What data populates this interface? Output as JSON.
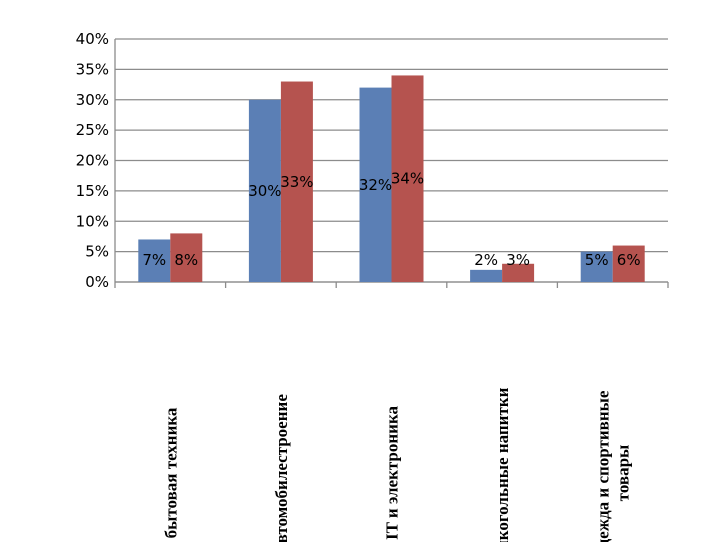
{
  "chart_data": {
    "type": "bar",
    "title": "",
    "xlabel": "",
    "ylabel": "",
    "categories": [
      [
        "бытовая техника"
      ],
      [
        "автомобилестроение"
      ],
      [
        "IT и электроника"
      ],
      [
        "алкогольные напитки"
      ],
      [
        "одежда и спортивные",
        "товары"
      ]
    ],
    "series": [
      {
        "values": [
          7,
          30,
          32,
          2,
          5
        ],
        "labels": [
          "7%",
          "30%",
          "32%",
          "2%",
          "5%"
        ],
        "color": "#5B7FB5"
      },
      {
        "values": [
          8,
          33,
          34,
          3,
          6
        ],
        "labels": [
          "8%",
          "33%",
          "34%",
          "3%",
          "6%"
        ],
        "color": "#B5534F"
      }
    ],
    "ylim": [
      0,
      40
    ],
    "yticks": [
      "0%",
      "5%",
      "10%",
      "15%",
      "20%",
      "25%",
      "30%",
      "35%",
      "40%"
    ],
    "grid": true,
    "legend": "none"
  }
}
